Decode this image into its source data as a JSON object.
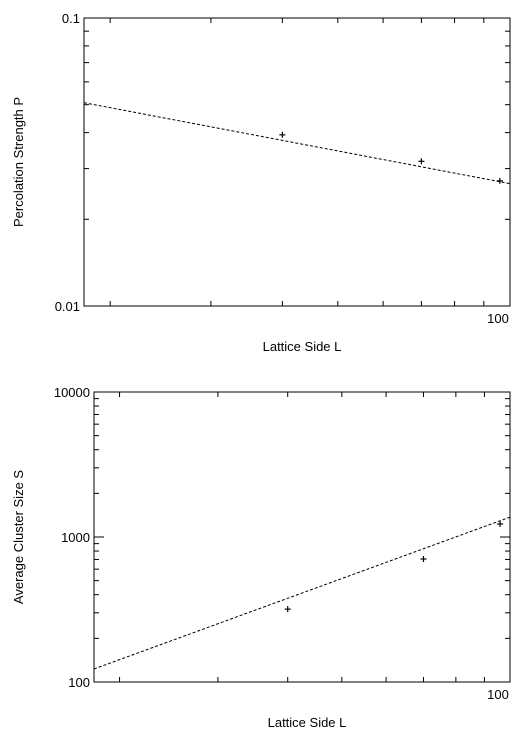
{
  "chart_data": [
    {
      "type": "scatter",
      "title": "",
      "xlabel": "Lattice Side L",
      "ylabel": "Percolation Strength P",
      "xscale": "log",
      "yscale": "log",
      "xlim": [
        18,
        100
      ],
      "ylim": [
        0.01,
        0.1
      ],
      "xticks": [
        {
          "value": 100,
          "label": "100"
        }
      ],
      "xminorticks": [
        20,
        30,
        40,
        50,
        60,
        70,
        80,
        90
      ],
      "yticks": [
        {
          "value": 0.01,
          "label": "0.01"
        },
        {
          "value": 0.1,
          "label": "0.1"
        }
      ],
      "yminorticks": [
        0.02,
        0.03,
        0.04,
        0.05,
        0.06,
        0.07,
        0.08,
        0.09
      ],
      "grid": false,
      "series": [
        {
          "points": [
            {
              "x": 40,
              "y": 0.0393
            },
            {
              "x": 70,
              "y": 0.0318
            },
            {
              "x": 96,
              "y": 0.0272
            }
          ]
        }
      ],
      "fit_line": {
        "x": [
          18,
          100
        ],
        "y": [
          0.0508,
          0.0266
        ]
      }
    },
    {
      "type": "scatter",
      "title": "",
      "xlabel": "Lattice Side L",
      "ylabel": "Average Cluster Size S",
      "xscale": "log",
      "yscale": "log",
      "xlim": [
        18,
        100
      ],
      "ylim": [
        100,
        10000
      ],
      "xticks": [
        {
          "value": 100,
          "label": "100"
        }
      ],
      "xminorticks": [
        20,
        30,
        40,
        50,
        60,
        70,
        80,
        90
      ],
      "yticks": [
        {
          "value": 100,
          "label": "100"
        },
        {
          "value": 1000,
          "label": "1000"
        },
        {
          "value": 10000,
          "label": "10000"
        }
      ],
      "yminorticks": [
        200,
        300,
        400,
        500,
        600,
        700,
        800,
        900,
        2000,
        3000,
        4000,
        5000,
        6000,
        7000,
        8000,
        9000
      ],
      "grid": false,
      "series": [
        {
          "points": [
            {
              "x": 40,
              "y": 318
            },
            {
              "x": 70,
              "y": 705
            },
            {
              "x": 96,
              "y": 1230
            }
          ]
        }
      ],
      "fit_line": {
        "x": [
          18,
          100
        ],
        "y": [
          123,
          1370
        ]
      }
    }
  ]
}
